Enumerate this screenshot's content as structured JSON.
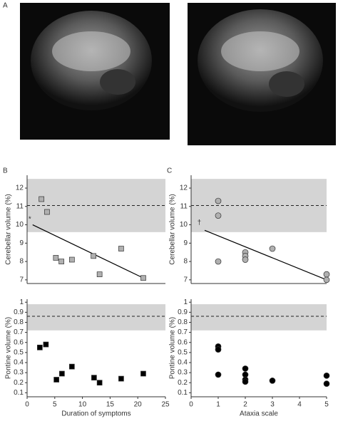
{
  "panel_label": "A",
  "chart_data": [
    {
      "type": "scatter",
      "panel": "B",
      "ylabel": "Cerebellar volume (%)",
      "xlim": [
        0,
        25
      ],
      "ylim": [
        6.8,
        12.7
      ],
      "yticks": [
        7,
        8,
        9,
        10,
        11,
        12
      ],
      "reference_band": [
        9.6,
        12.5
      ],
      "reference_line": 11.05,
      "marker": "square",
      "color": "#b0b0b0",
      "x": [
        2.6,
        3.6,
        5.2,
        6.2,
        8.1,
        12.0,
        13.1,
        17.0,
        21.0
      ],
      "values": [
        11.4,
        10.7,
        8.2,
        8.0,
        8.1,
        8.3,
        7.3,
        8.7,
        7.1
      ],
      "fit_line": {
        "x": [
          1.0,
          21.0
        ],
        "y": [
          10.0,
          7.1
        ]
      },
      "annotation": {
        "text": "*",
        "x": 0.5,
        "y": 10.3
      }
    },
    {
      "type": "scatter",
      "ylabel": "Pontine volume (%)",
      "xlabel": "Duration of symptoms",
      "xlim": [
        0,
        25
      ],
      "xticks": [
        0,
        5,
        10,
        15,
        20,
        25
      ],
      "ylim": [
        0.06,
        1.03
      ],
      "yticks": [
        0.1,
        0.2,
        0.3,
        0.4,
        0.5,
        0.6,
        0.7,
        0.8,
        0.9,
        1
      ],
      "reference_band": [
        0.72,
        0.98
      ],
      "reference_line": 0.86,
      "marker": "square",
      "color": "#000000",
      "x": [
        2.3,
        3.4,
        5.3,
        6.3,
        8.1,
        12.1,
        13.1,
        17.0,
        21.0
      ],
      "values": [
        0.55,
        0.58,
        0.23,
        0.29,
        0.36,
        0.25,
        0.2,
        0.24,
        0.29
      ]
    },
    {
      "type": "scatter",
      "panel": "C",
      "ylabel": "Cerebellar volume (%)",
      "xlim": [
        0,
        5
      ],
      "ylim": [
        6.8,
        12.7
      ],
      "yticks": [
        7,
        8,
        9,
        10,
        11,
        12
      ],
      "reference_band": [
        9.6,
        12.5
      ],
      "reference_line": 11.05,
      "marker": "circle",
      "color": "#b0b0b0",
      "x": [
        1,
        1,
        1,
        2,
        2,
        2,
        3,
        5,
        5
      ],
      "values": [
        11.3,
        10.5,
        8.0,
        8.5,
        8.3,
        8.1,
        8.7,
        7.3,
        7.0
      ],
      "fit_line": {
        "x": [
          0.5,
          5
        ],
        "y": [
          9.7,
          7.0
        ]
      },
      "annotation": {
        "text": "†",
        "x": 0.3,
        "y": 10.1
      }
    },
    {
      "type": "scatter",
      "ylabel": "Pontine volume (%)",
      "xlabel": "Ataxia scale",
      "xlim": [
        0,
        5
      ],
      "xticks": [
        0,
        1,
        2,
        3,
        4,
        5
      ],
      "ylim": [
        0.06,
        1.03
      ],
      "yticks": [
        0.1,
        0.2,
        0.3,
        0.4,
        0.5,
        0.6,
        0.7,
        0.8,
        0.9,
        1
      ],
      "reference_band": [
        0.72,
        0.98
      ],
      "reference_line": 0.86,
      "marker": "circle",
      "color": "#000000",
      "x": [
        1,
        1,
        1,
        2,
        2,
        2,
        2,
        3,
        5,
        5
      ],
      "values": [
        0.56,
        0.53,
        0.28,
        0.34,
        0.28,
        0.23,
        0.21,
        0.22,
        0.27,
        0.19
      ]
    }
  ]
}
